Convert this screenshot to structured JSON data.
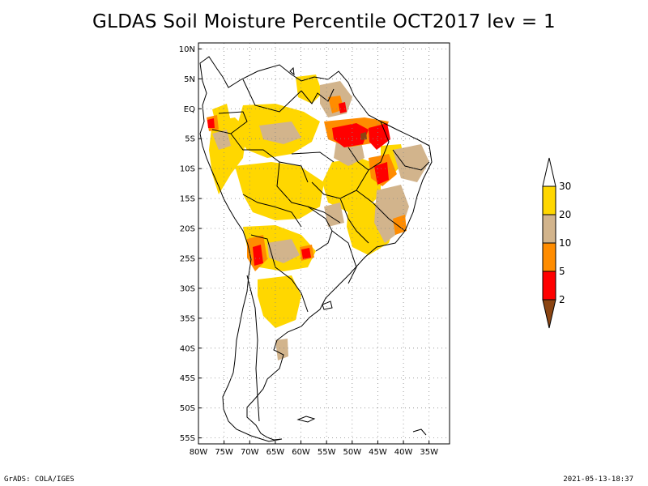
{
  "title": "GLDAS Soil Moisture Percentile OCT2017 lev = 1",
  "footer": {
    "left": "GrADS: COLA/IGES",
    "right": "2021-05-13-18:37"
  },
  "map": {
    "lon_range": [
      -80,
      -31
    ],
    "lat_range": [
      -56,
      11
    ],
    "lat_ticks": [
      {
        "v": 10,
        "label": "10N"
      },
      {
        "v": 5,
        "label": "5N"
      },
      {
        "v": 0,
        "label": "EQ"
      },
      {
        "v": -5,
        "label": "5S"
      },
      {
        "v": -10,
        "label": "10S"
      },
      {
        "v": -15,
        "label": "15S"
      },
      {
        "v": -20,
        "label": "20S"
      },
      {
        "v": -25,
        "label": "25S"
      },
      {
        "v": -30,
        "label": "30S"
      },
      {
        "v": -35,
        "label": "35S"
      },
      {
        "v": -40,
        "label": "40S"
      },
      {
        "v": -45,
        "label": "45S"
      },
      {
        "v": -50,
        "label": "50S"
      },
      {
        "v": -55,
        "label": "55S"
      }
    ],
    "lon_ticks": [
      {
        "v": -80,
        "label": "80W"
      },
      {
        "v": -75,
        "label": "75W"
      },
      {
        "v": -70,
        "label": "70W"
      },
      {
        "v": -65,
        "label": "65W"
      },
      {
        "v": -60,
        "label": "60W"
      },
      {
        "v": -55,
        "label": "55W"
      },
      {
        "v": -50,
        "label": "50W"
      },
      {
        "v": -45,
        "label": "45W"
      },
      {
        "v": -40,
        "label": "40W"
      },
      {
        "v": -35,
        "label": "35W"
      }
    ],
    "grid": "dotted"
  },
  "colorbar": {
    "levels": [
      "2",
      "5",
      "10",
      "20",
      "30"
    ],
    "colors": {
      "lt2": "#8b4513",
      "2to5": "#ff0000",
      "5to10": "#ff8c00",
      "10to20": "#d2b48c",
      "20to30": "#ffd700",
      "gt30": "#ffffff"
    }
  },
  "chart_data": {
    "type": "heatmap",
    "title": "GLDAS Soil Moisture Percentile OCT2017 lev = 1",
    "variable": "soil moisture percentile",
    "class_breaks": [
      2,
      5,
      10,
      20,
      30
    ],
    "dry_regions": [
      {
        "lon": -48,
        "lat": -4,
        "class": "2-5"
      },
      {
        "lon": -44,
        "lat": -4,
        "class": "2-5"
      },
      {
        "lon": -44,
        "lat": -9,
        "class": "2-5"
      },
      {
        "lon": -67,
        "lat": -24,
        "class": "2-5"
      },
      {
        "lon": -60,
        "lat": -24,
        "class": "2-5"
      },
      {
        "lon": -77,
        "lat": -2,
        "class": "5-10"
      },
      {
        "lon": -50,
        "lat": -3,
        "class": "5-10"
      },
      {
        "lon": -42,
        "lat": -14,
        "class": "10-20"
      },
      {
        "lon": -52,
        "lat": 4,
        "class": "10-20"
      },
      {
        "lon": -63,
        "lat": -5,
        "class": "20-30"
      },
      {
        "lon": -55,
        "lat": -12,
        "class": "20-30"
      },
      {
        "lon": -62,
        "lat": -30,
        "class": "20-30"
      },
      {
        "lon": -65,
        "lat": -42,
        "class": "10-20"
      }
    ]
  }
}
